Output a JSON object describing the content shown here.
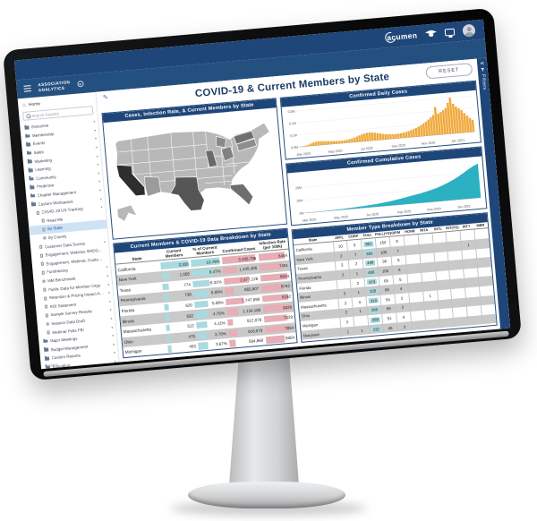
{
  "colors": {
    "navy": "#1e4679",
    "titleNavy": "#1b3c63",
    "orange": "#f0a93c",
    "teal": "#2cb1c2",
    "barTeal": "#a9dae0",
    "barPink": "#e7aeb6",
    "rowGray": "#c9c9c9",
    "selectedBlue": "#cfe2f4",
    "mapDefault": "#b8b8b8"
  },
  "topbar": {
    "brand": "acumen",
    "icons": [
      "graduation-cap",
      "display",
      "avatar"
    ]
  },
  "appbar": {
    "logo_line1": "ASSOCIATION",
    "logo_line2": "ANALYTICS"
  },
  "sidebar": {
    "home_label": "Home",
    "search_placeholder": "Search Reports",
    "footer": "Platform",
    "items": [
      {
        "label": "Executive",
        "level": 1,
        "icon": "folder",
        "chevron": true
      },
      {
        "label": "Membership",
        "level": 1,
        "icon": "folder",
        "chevron": true
      },
      {
        "label": "Events",
        "level": 1,
        "icon": "folder",
        "chevron": true
      },
      {
        "label": "Sales",
        "level": 1,
        "icon": "folder",
        "chevron": true
      },
      {
        "label": "Marketing",
        "level": 1,
        "icon": "folder",
        "chevron": true
      },
      {
        "label": "Learning",
        "level": 1,
        "icon": "folder",
        "chevron": true
      },
      {
        "label": "Community",
        "level": 1,
        "icon": "folder",
        "chevron": true
      },
      {
        "label": "Predictive",
        "level": 1,
        "icon": "folder",
        "chevron": true
      },
      {
        "label": "Chapter Management",
        "level": 1,
        "icon": "folder",
        "chevron": true
      },
      {
        "label": "Custom Workspace",
        "level": 1,
        "icon": "folder",
        "chevron": true
      },
      {
        "label": "COVID-19 US Tracking",
        "level": 2,
        "icon": "report",
        "chevron": true
      },
      {
        "label": "Read Me",
        "level": 3,
        "icon": "report"
      },
      {
        "label": "By State",
        "level": 3,
        "icon": "report",
        "selected": true
      },
      {
        "label": "By County",
        "level": 3,
        "icon": "report"
      },
      {
        "label": "Customer Data Survey",
        "level": 2,
        "icon": "report",
        "chevron": true
      },
      {
        "label": "Engagement, Webinar, BADG…",
        "level": 2,
        "icon": "report"
      },
      {
        "label": "Engagement, Webinar, Custo…",
        "level": 2,
        "icon": "report"
      },
      {
        "label": "Fundraising",
        "level": 2,
        "icon": "report",
        "chevron": true
      },
      {
        "label": "MM Benchmark",
        "level": 2,
        "icon": "report",
        "chevron": true
      },
      {
        "label": "Public Data for Member Orgs",
        "level": 2,
        "icon": "report",
        "chevron": true
      },
      {
        "label": "Retention & Pricing Impact Analysis",
        "level": 2,
        "icon": "report",
        "chevron": true
      },
      {
        "label": "ROI Statement",
        "level": 2,
        "icon": "report",
        "chevron": true
      },
      {
        "label": "Sample Survey Results",
        "level": 2,
        "icon": "report",
        "chevron": true
      },
      {
        "label": "Session Data Draft",
        "level": 2,
        "icon": "report",
        "chevron": true
      },
      {
        "label": "Webinar Polls FB!",
        "level": 2,
        "icon": "report",
        "chevron": true
      },
      {
        "label": "Major Meetings",
        "level": 1,
        "icon": "folder",
        "chevron": true
      },
      {
        "label": "Budget Management",
        "level": 1,
        "icon": "folder",
        "chevron": true
      },
      {
        "label": "Custom Reports",
        "level": 1,
        "icon": "folder",
        "chevron": true
      },
      {
        "label": "Education",
        "level": 1,
        "icon": "folder",
        "chevron": true
      },
      {
        "label": "Resources",
        "level": 1,
        "icon": "folder",
        "chevron": true
      }
    ]
  },
  "canvas": {
    "title": "COVID-19  & Current Members by State",
    "reset_label": "RESET",
    "filters_label": "Filters"
  },
  "chart_data": [
    {
      "id": "daily",
      "type": "bar",
      "title": "Confirmed Daily Cases",
      "color": "#f0a93c",
      "ylim": [
        0,
        0.32
      ],
      "yticks": [
        "0.0M",
        "0.1M",
        "0.2M",
        "0.3M"
      ],
      "ytick_vals": [
        0,
        0.1,
        0.2,
        0.3
      ],
      "xticks": [
        "Mar 2020",
        "May 2020",
        "Jul 2020",
        "Sep 2020",
        "Nov 2020",
        "Jan 2021"
      ],
      "xtick_pos": [
        0.02,
        0.2,
        0.38,
        0.56,
        0.73,
        0.9
      ],
      "values": [
        0.001,
        0.003,
        0.006,
        0.012,
        0.02,
        0.027,
        0.031,
        0.033,
        0.032,
        0.03,
        0.029,
        0.027,
        0.026,
        0.024,
        0.023,
        0.022,
        0.022,
        0.023,
        0.025,
        0.028,
        0.032,
        0.038,
        0.045,
        0.052,
        0.059,
        0.064,
        0.068,
        0.069,
        0.067,
        0.063,
        0.058,
        0.053,
        0.048,
        0.044,
        0.042,
        0.04,
        0.038,
        0.037,
        0.038,
        0.04,
        0.043,
        0.047,
        0.052,
        0.058,
        0.065,
        0.073,
        0.082,
        0.092,
        0.104,
        0.118,
        0.133,
        0.15,
        0.168,
        0.232,
        0.176,
        0.188,
        0.2,
        0.216,
        0.258,
        0.3,
        0.246,
        0.222,
        0.205,
        0.188,
        0.162,
        0.138,
        0.118,
        0.098
      ]
    },
    {
      "id": "cumulative",
      "type": "area",
      "title": "Confirmed Cumulative Cases",
      "color": "#2cb1c2",
      "ylim": [
        0,
        30
      ],
      "yticks": [
        "0M",
        "10M",
        "20M"
      ],
      "ytick_vals": [
        0,
        10,
        20
      ],
      "xticks": [
        "Mar 2020",
        "May 2020",
        "Jul 2020",
        "Sep 2020",
        "Nov 2020",
        "Jan 2021"
      ],
      "xtick_pos": [
        0.02,
        0.2,
        0.38,
        0.56,
        0.73,
        0.9
      ],
      "values": [
        0,
        0.02,
        0.05,
        0.12,
        0.21,
        0.31,
        0.42,
        0.55,
        0.7,
        0.87,
        1.05,
        1.25,
        1.5,
        1.75,
        2.05,
        2.4,
        2.8,
        3.3,
        3.9,
        4.5,
        5.2,
        5.9,
        6.6,
        7.3,
        8.1,
        9.0,
        10.0,
        11.2,
        12.6,
        14.2,
        16.0,
        18.1,
        20.4,
        22.7,
        24.9,
        26.6
      ]
    },
    {
      "id": "map",
      "type": "heatmap",
      "title": "Cases, Infection Rate, & Current Members by State",
      "shades": {
        "California": "#2e2e2e",
        "Texas": "#565656",
        "New York": "#6f6f6f",
        "Florida": "#6e6e6e",
        "Illinois": "#6a6a6a",
        "Ohio": "#828282",
        "Pennsylvania": "#8e8e8e",
        "Michigan": "#8a8a8a",
        "Arizona": "#9b9b9b",
        "default": "#b8b8b8"
      }
    },
    {
      "id": "left_table",
      "type": "table",
      "title": "Current Members & COVID-19 Data Breakdown by State",
      "headers": [
        "State",
        "Current Members",
        "% of Current Members",
        "Confirmed Cases",
        "Infection Rate (per 100k)"
      ],
      "bar_cols": {
        "1": "teal",
        "2": "teal",
        "3": "pink",
        "4": "pink"
      },
      "rows": [
        [
          "California",
          "3,338",
          "10.79%",
          "3,335,796",
          "8404"
        ],
        [
          "New York",
          "1,055",
          "8.47%",
          "1,445,485",
          "7451"
        ],
        [
          "Texas",
          "774",
          "6.31%",
          "2,477,126",
          "8544"
        ],
        [
          "Pennsylvania",
          "736",
          "5.80%",
          "865,607",
          "6762"
        ],
        [
          "Florida",
          "620",
          "5.06%",
          "1,747,890",
          "8192"
        ],
        [
          "Illinois",
          "592",
          "4.75%",
          "1,134,186",
          "9028"
        ],
        [
          "Massachusetts",
          "512",
          "4.11%",
          "512,076",
          "7429"
        ],
        [
          "Ohio",
          "475",
          "3.78%",
          "916,079",
          "7854"
        ],
        [
          "Michigan",
          "453",
          "3.67%",
          "594,660",
          "5954"
        ]
      ]
    },
    {
      "id": "right_table",
      "type": "table",
      "title": "Member Type Breakdown by State",
      "headers": [
        "State",
        "AFFL",
        "CORP",
        "FULL",
        "FULL(YG)",
        "GIPM",
        "HONR",
        "INTA",
        "INTL",
        "INT(YG)",
        "INTT",
        "MBR"
      ],
      "highlight_col": 3,
      "rows": [
        [
          "California",
          "10",
          "9",
          "801",
          "150",
          "8",
          "",
          "",
          "",
          "",
          "",
          ""
        ],
        [
          "New York",
          "2",
          "7",
          "583",
          "105",
          "7",
          "",
          "",
          "",
          "",
          "1",
          ""
        ],
        [
          "Texas",
          "3",
          "2",
          "448",
          "98",
          "5",
          "",
          "",
          "",
          "",
          "",
          ""
        ],
        [
          "Pennsylvania",
          "2",
          "1",
          "408",
          "100",
          "6",
          "",
          "",
          "",
          "",
          "",
          ""
        ],
        [
          "Florida",
          "",
          "2",
          "379",
          "65",
          "5",
          "",
          "",
          "",
          "",
          "",
          ""
        ],
        [
          "Illinois",
          "3",
          "1",
          "335",
          "68",
          "4",
          "",
          "",
          "",
          "",
          "",
          ""
        ],
        [
          "Massachusetts",
          "3",
          "4",
          "310",
          "54",
          "2",
          "",
          "1",
          "",
          "",
          "",
          ""
        ],
        [
          "Ohio",
          "2",
          "1",
          "286",
          "56",
          "2",
          "",
          "",
          "",
          "",
          "",
          ""
        ],
        [
          "Michigan",
          "3",
          "",
          "289",
          "51",
          "4",
          "",
          "",
          "",
          "",
          "",
          ""
        ],
        [
          "Maryland",
          "1",
          "1",
          "232",
          "45",
          "3",
          "",
          "",
          "",
          "",
          "",
          ""
        ]
      ]
    }
  ]
}
